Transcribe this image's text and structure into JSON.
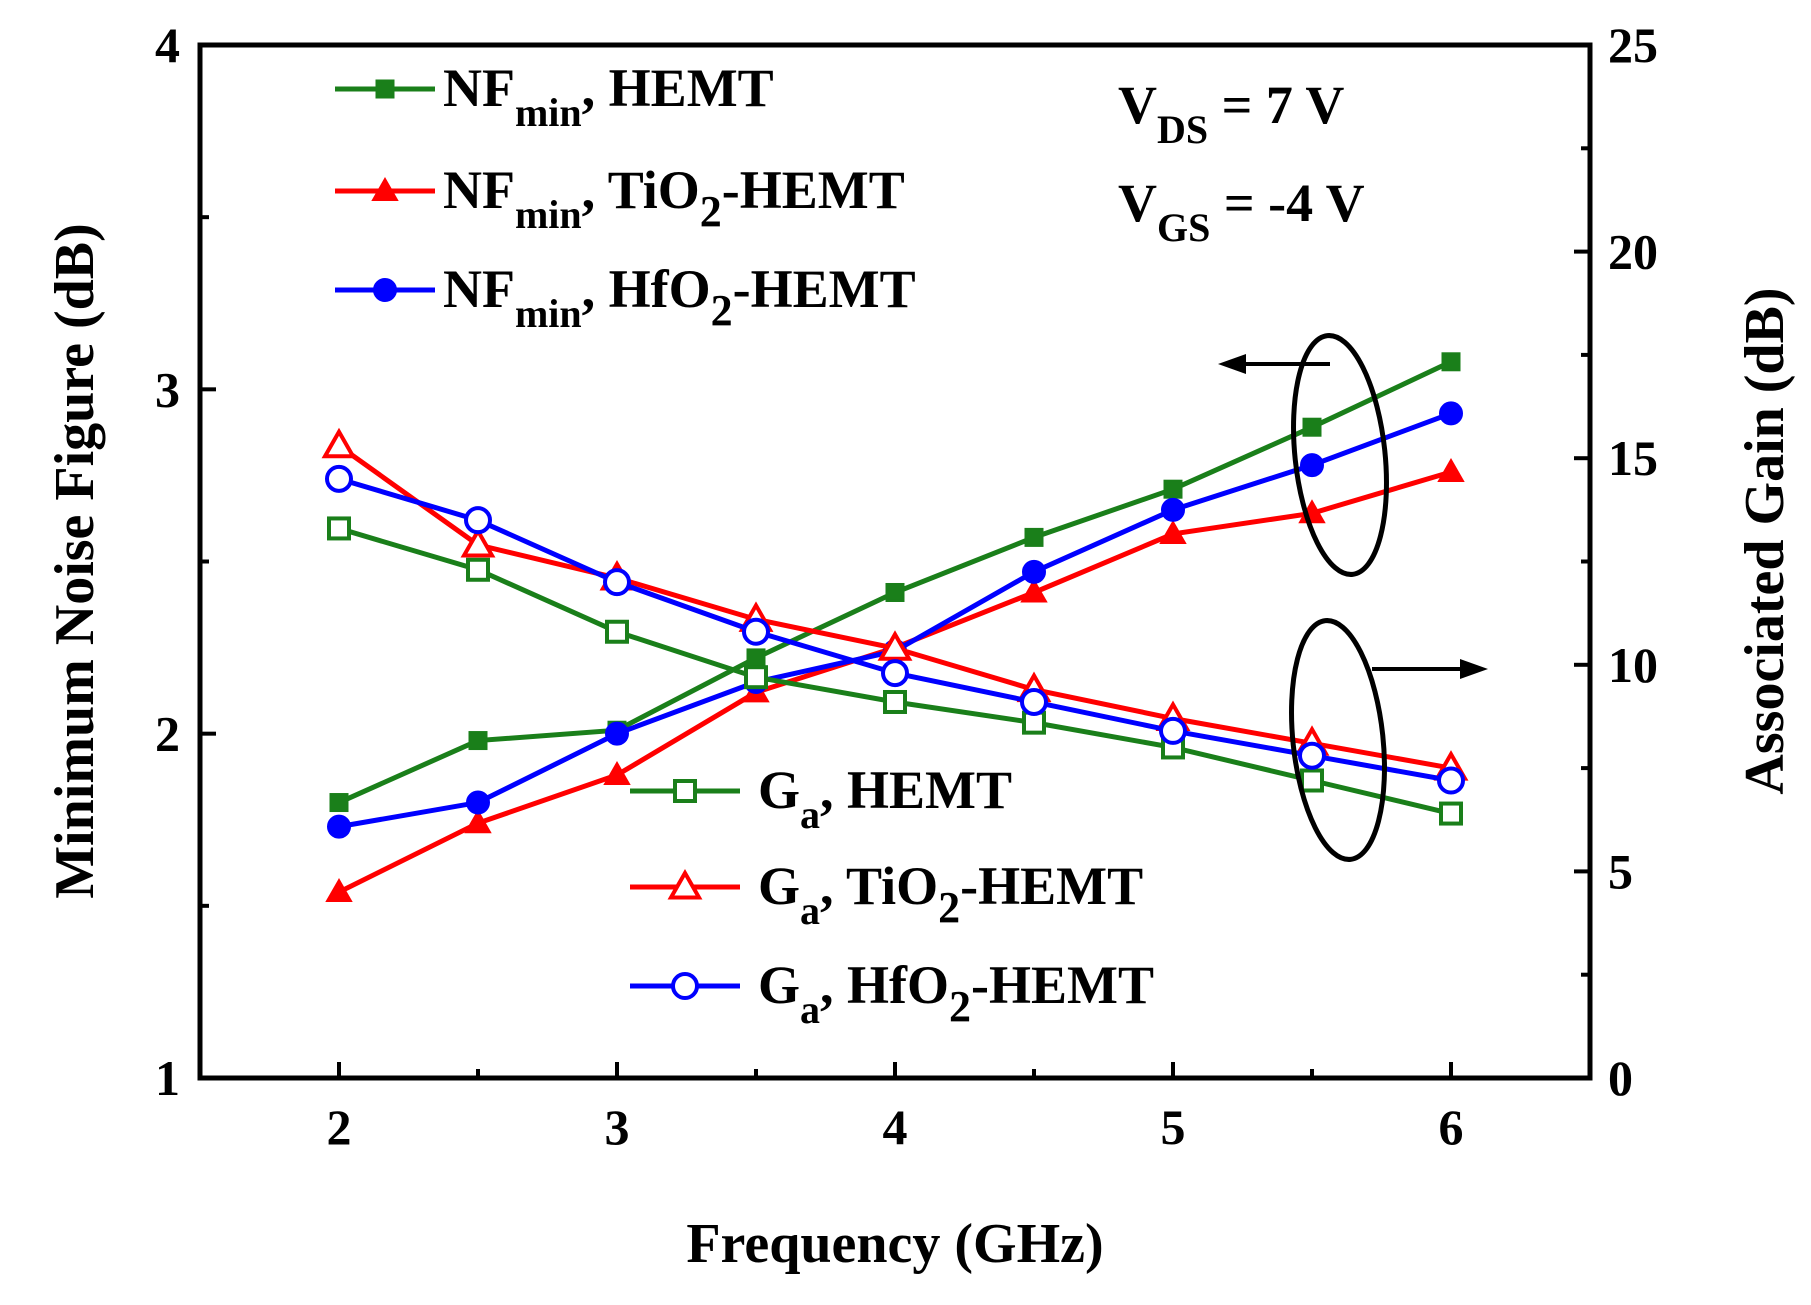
{
  "chart_data": {
    "type": "line",
    "xlabel": "Frequency (GHz)",
    "ylabel_left": "Minimum Noise Figure (dB)",
    "ylabel_right": "Associated Gain (dB)",
    "xlim": [
      1.5,
      6.5
    ],
    "ylim_left": [
      1,
      4
    ],
    "ylim_right": [
      0,
      25
    ],
    "x_ticks": [
      "2",
      "3",
      "4",
      "5",
      "6"
    ],
    "y_left_ticks": [
      "1",
      "2",
      "3",
      "4"
    ],
    "y_right_ticks": [
      "0",
      "5",
      "10",
      "15",
      "20",
      "25"
    ],
    "x": [
      2,
      2.5,
      3,
      3.5,
      4,
      4.5,
      5,
      5.5,
      6
    ],
    "conditions": {
      "vds": {
        "main": "V",
        "sub": "DS",
        "rest": " = 7 V"
      },
      "vgs": {
        "main": "V",
        "sub": "GS",
        "rest": " = -4 V"
      }
    },
    "series": [
      {
        "id": "nf-hemt",
        "axis": "left",
        "marker": "filled-square",
        "color": "#1a7f1a",
        "label": {
          "main": "NF",
          "sub": "min",
          "mid": ", HEMT",
          "sub2": "",
          "end": ""
        },
        "values": [
          1.8,
          1.98,
          2.01,
          2.22,
          2.41,
          2.57,
          2.71,
          2.89,
          3.08
        ]
      },
      {
        "id": "nf-tio2",
        "axis": "left",
        "marker": "filled-triangle",
        "color": "#ff0000",
        "label": {
          "main": "NF",
          "sub": "min",
          "mid": ", TiO",
          "sub2": "2",
          "end": "-HEMT"
        },
        "values": [
          1.54,
          1.74,
          1.88,
          2.12,
          2.25,
          2.41,
          2.58,
          2.64,
          2.76
        ]
      },
      {
        "id": "nf-hfo2",
        "axis": "left",
        "marker": "filled-circle",
        "color": "#0000ff",
        "label": {
          "main": "NF",
          "sub": "min",
          "mid": ", HfO",
          "sub2": "2",
          "end": "-HEMT"
        },
        "values": [
          1.73,
          1.8,
          2.0,
          2.15,
          2.24,
          2.47,
          2.65,
          2.78,
          2.93
        ]
      },
      {
        "id": "ga-hemt",
        "axis": "right",
        "marker": "open-square",
        "color": "#1a7f1a",
        "label": {
          "main": "G",
          "sub": "a",
          "mid": ", HEMT",
          "sub2": "",
          "end": ""
        },
        "values": [
          13.3,
          12.3,
          10.8,
          9.7,
          9.1,
          8.6,
          8.0,
          7.2,
          6.4
        ]
      },
      {
        "id": "ga-tio2",
        "axis": "right",
        "marker": "open-triangle",
        "color": "#ff0000",
        "label": {
          "main": "G",
          "sub": "a",
          "mid": ", TiO",
          "sub2": "2",
          "end": "-HEMT"
        },
        "values": [
          15.3,
          12.9,
          12.1,
          11.1,
          10.4,
          9.4,
          8.7,
          8.1,
          7.5
        ]
      },
      {
        "id": "ga-hfo2",
        "axis": "right",
        "marker": "open-circle",
        "color": "#0000ff",
        "label": {
          "main": "G",
          "sub": "a",
          "mid": ", HfO",
          "sub2": "2",
          "end": "-HEMT"
        },
        "values": [
          14.5,
          13.5,
          12.0,
          10.8,
          9.8,
          9.1,
          8.4,
          7.8,
          7.2
        ]
      }
    ],
    "annotations": [
      "arrow to left axis marks the NFmin curves",
      "arrow to right axis marks the Ga curves"
    ]
  }
}
